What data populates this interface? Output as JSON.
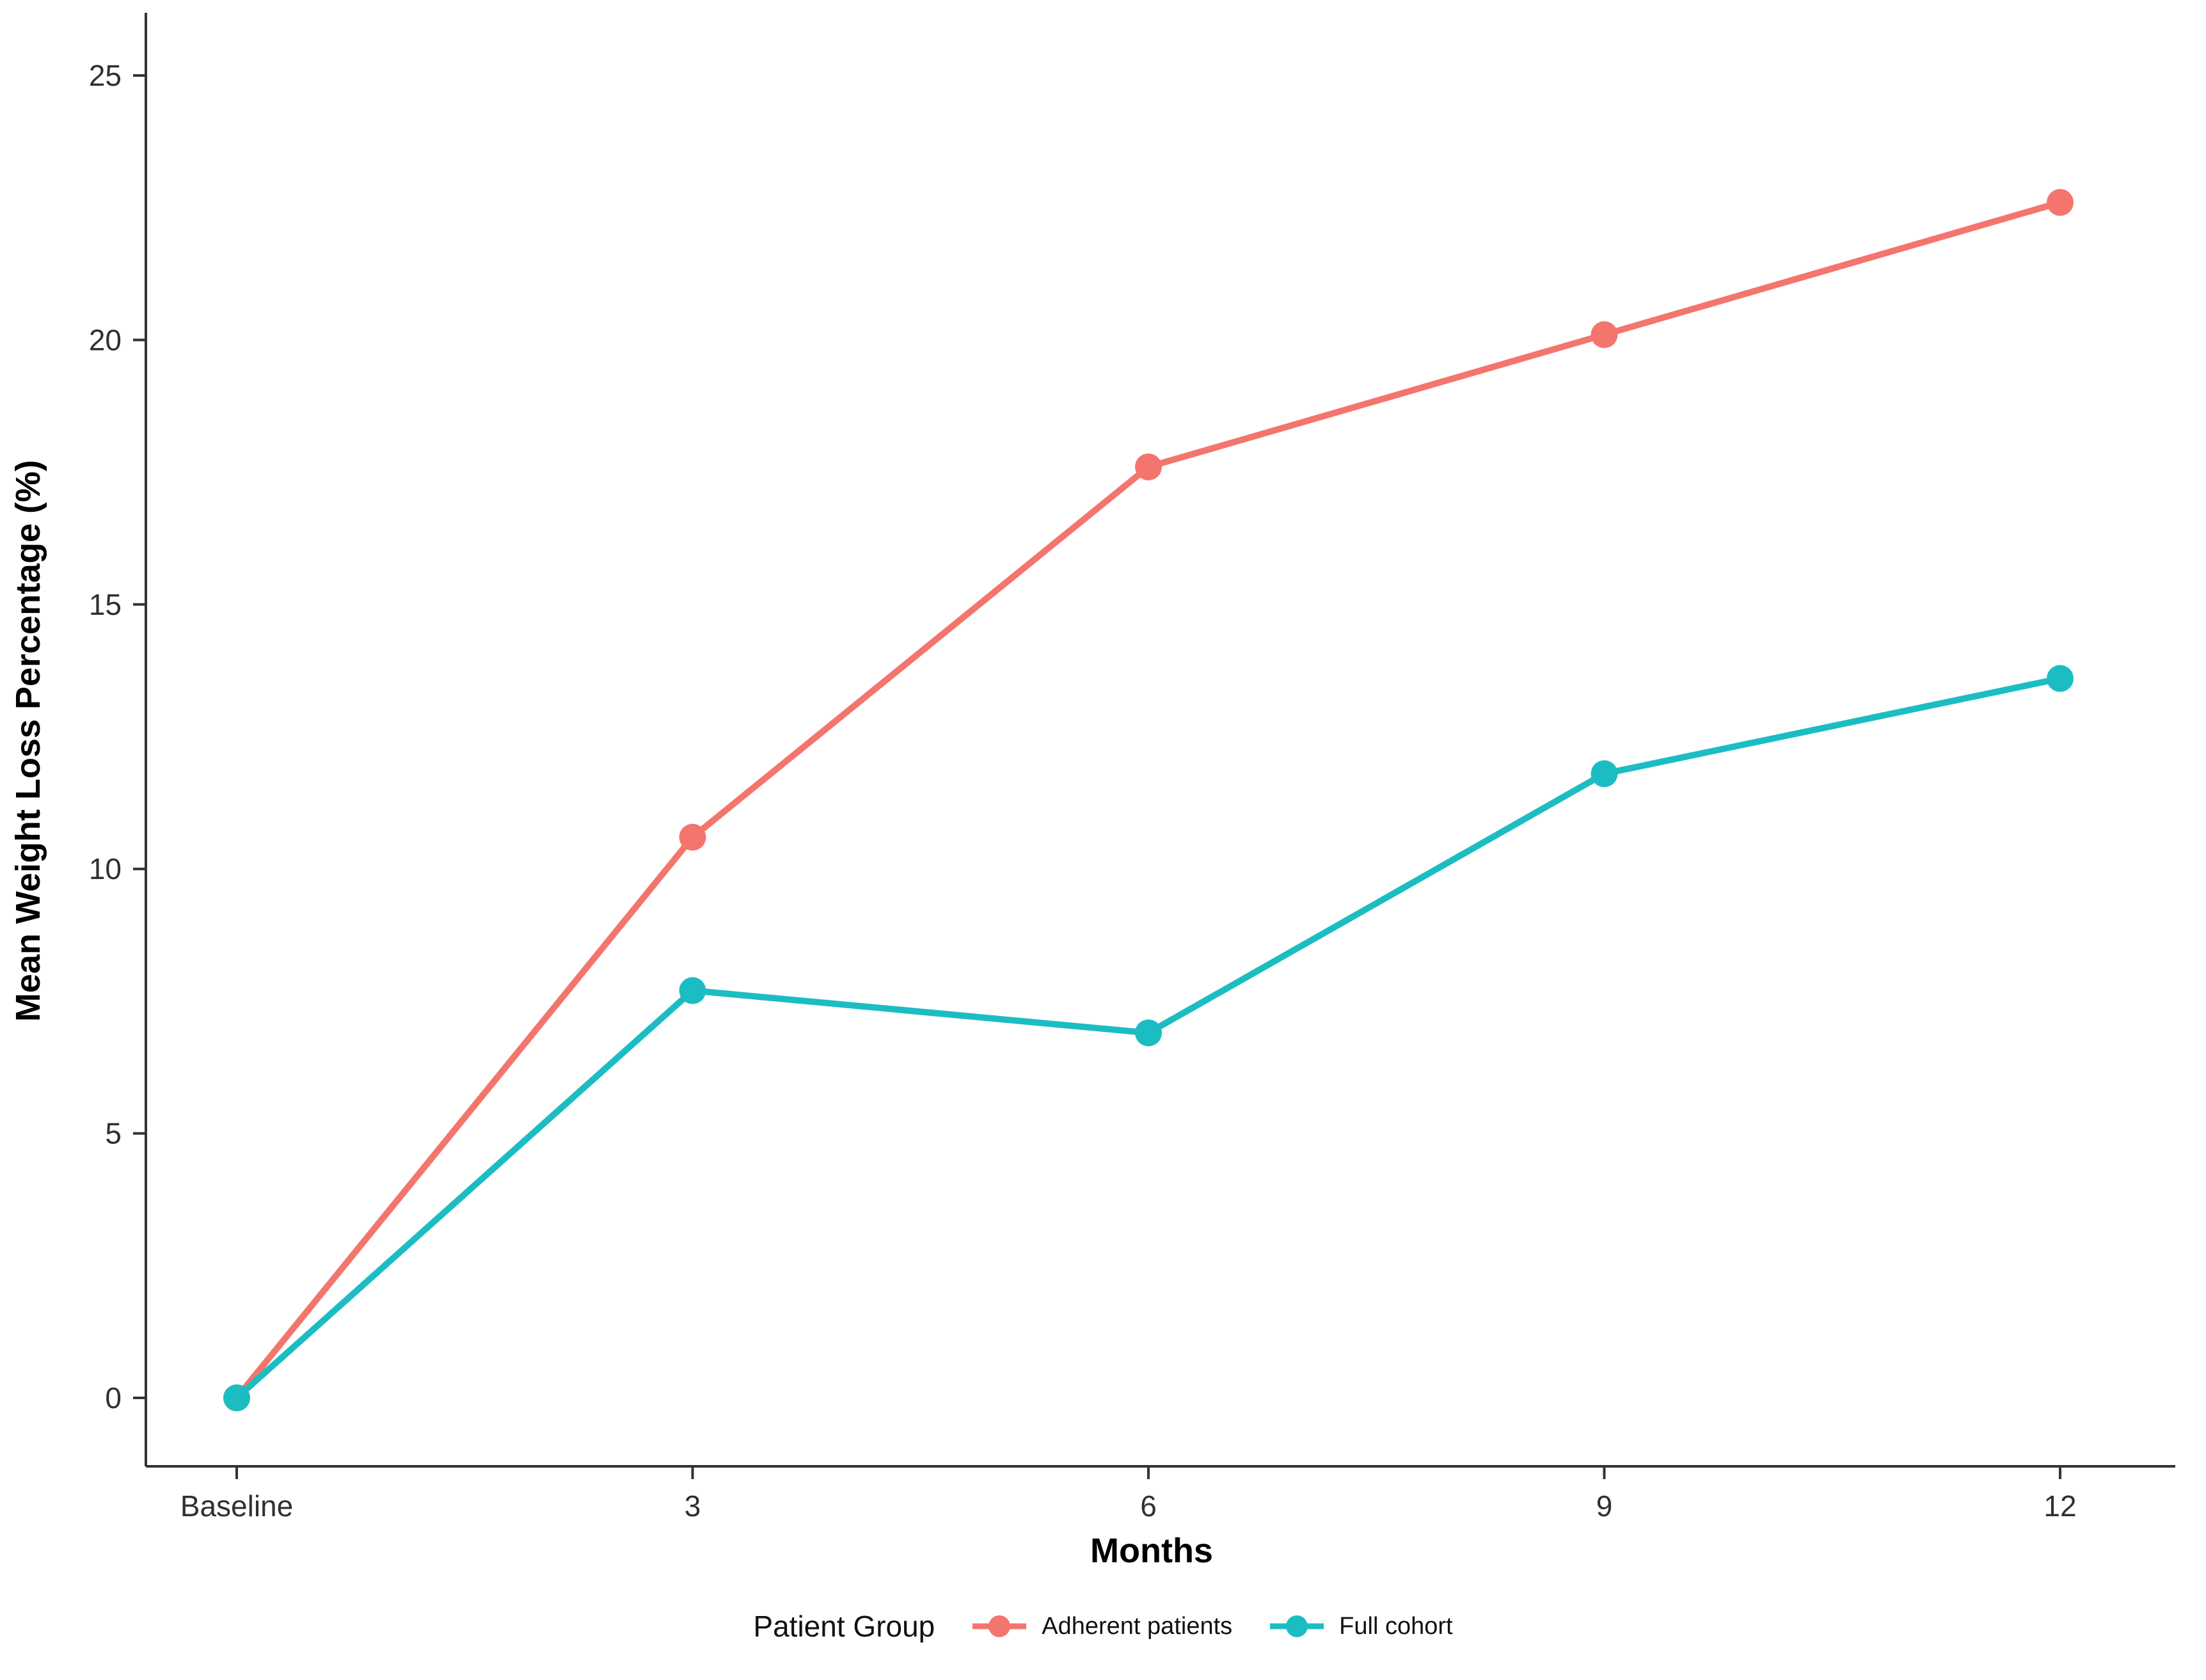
{
  "chart_data": {
    "type": "line",
    "x": [
      0,
      3,
      6,
      9,
      12
    ],
    "x_tick_labels": [
      "Baseline",
      "3",
      "6",
      "9",
      "12"
    ],
    "y_ticks": [
      0,
      5,
      10,
      15,
      20,
      25
    ],
    "ylim": [
      0,
      25
    ],
    "grid": false,
    "xlabel": "Months",
    "ylabel": "Mean Weight Loss Percentage (%)",
    "legend_title": "Patient Group",
    "legend_position": "bottom",
    "series": [
      {
        "name": "Adherent patients",
        "color": "#F3756D",
        "values": [
          0,
          10.6,
          17.6,
          20.1,
          22.6
        ]
      },
      {
        "name": "Full cohort",
        "color": "#1CBDC2",
        "values": [
          0,
          7.7,
          6.9,
          11.8,
          13.6
        ]
      }
    ]
  },
  "style": {
    "axis_color": "#333333",
    "tick_label_color": "#303030"
  }
}
